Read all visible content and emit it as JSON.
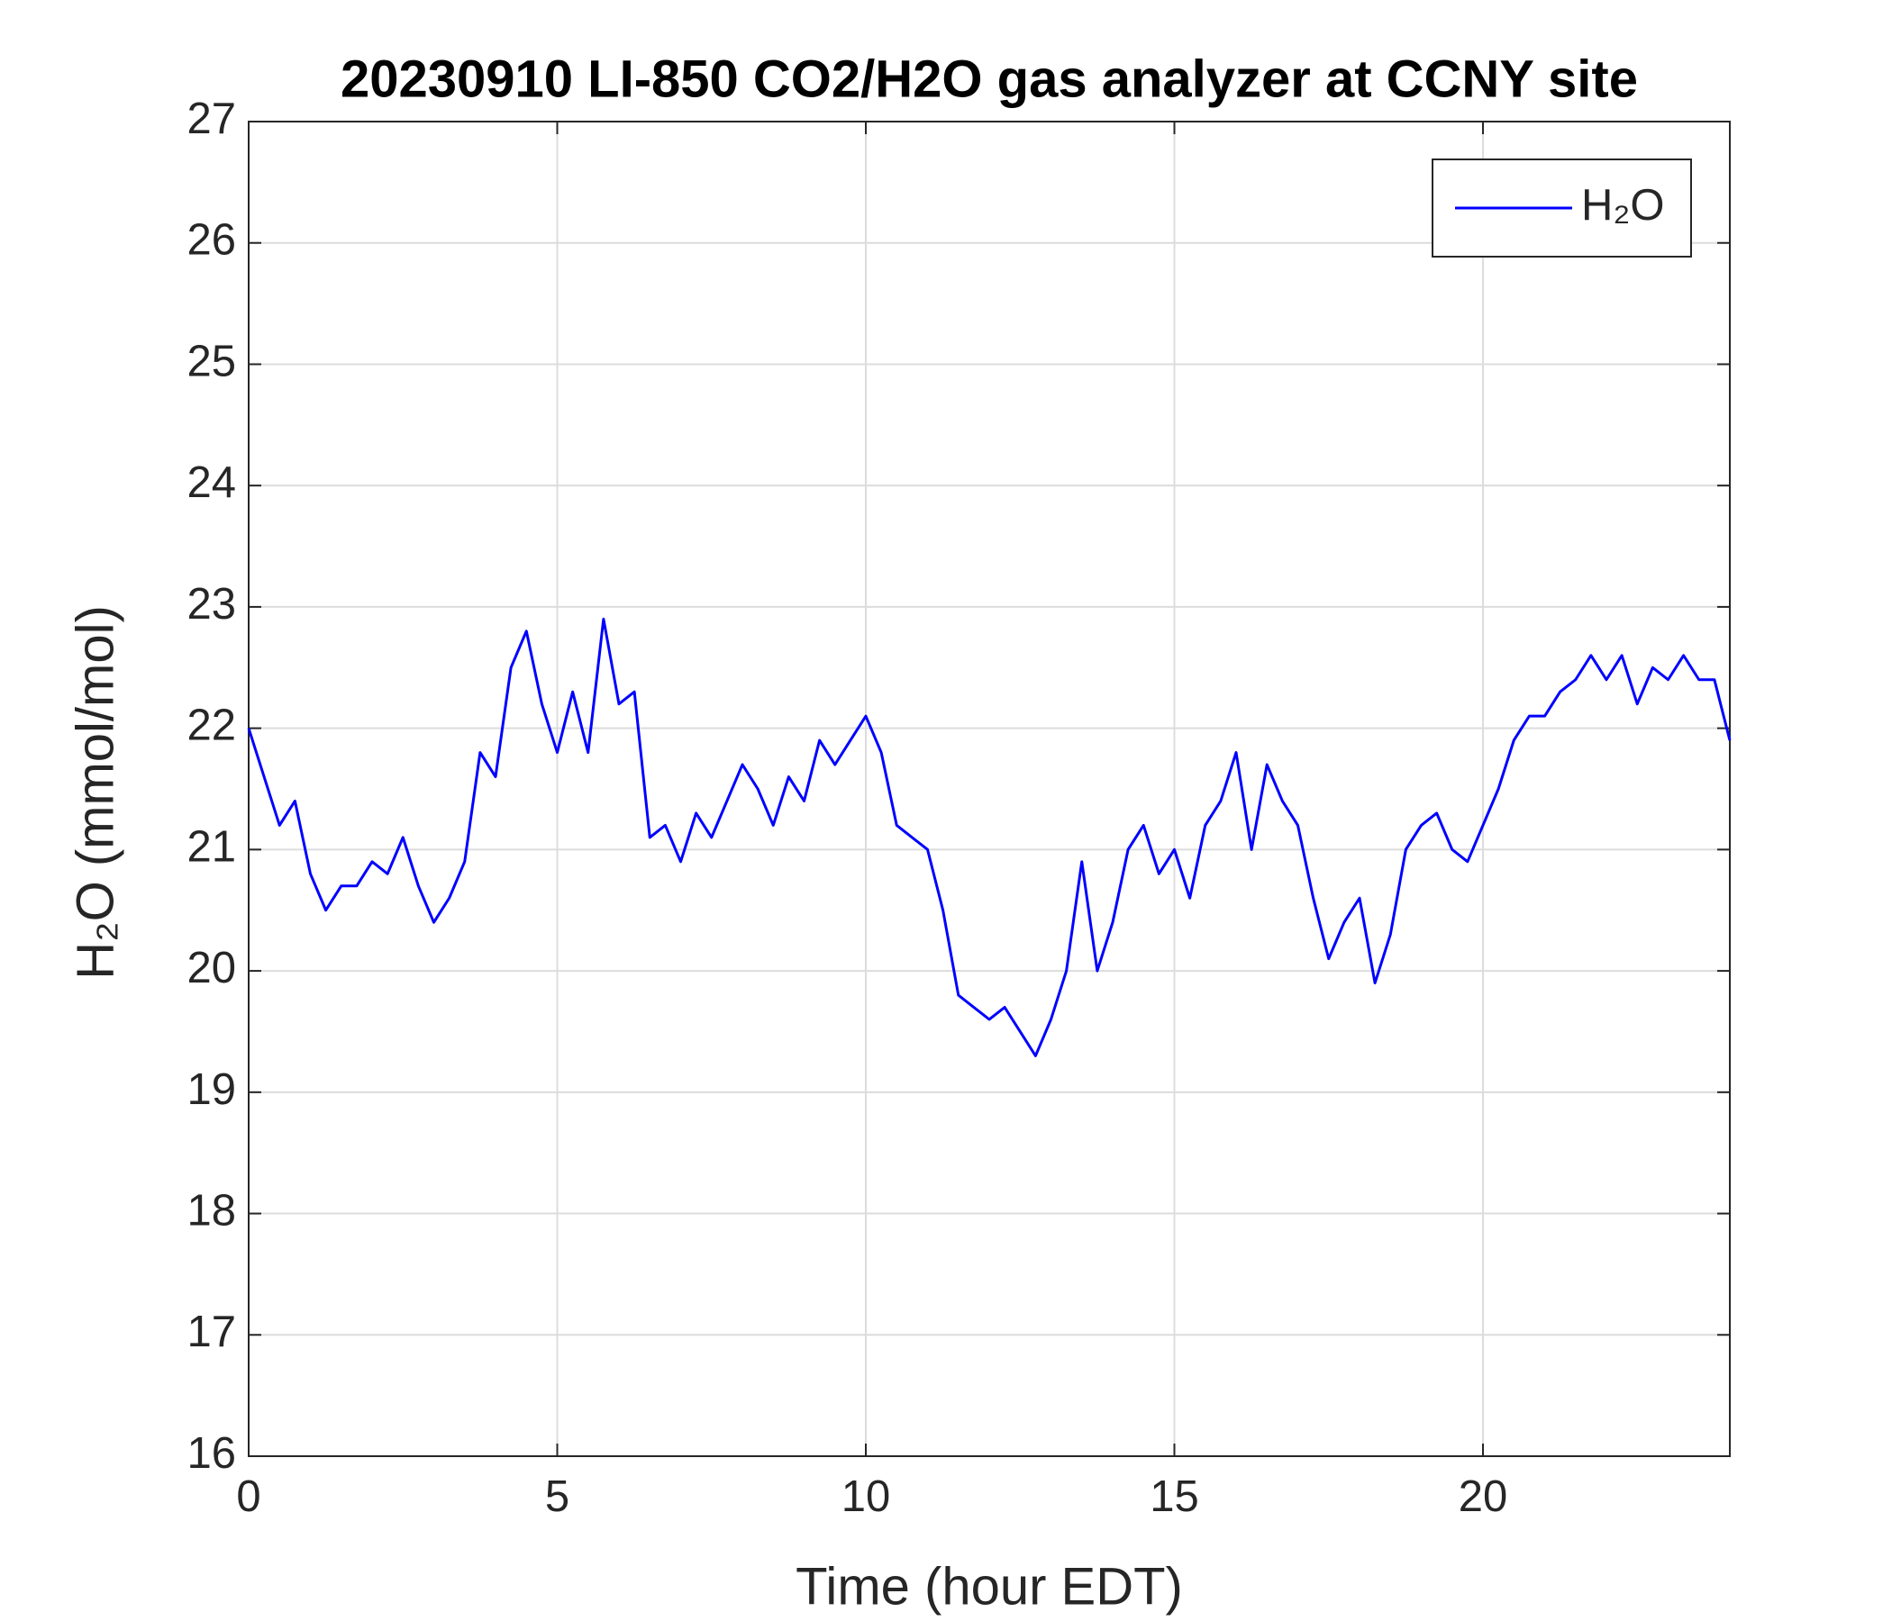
{
  "chart_data": {
    "type": "line",
    "title": "20230910 LI-850 CO2/H2O gas analyzer at CCNY site",
    "xlabel": "Time (hour EDT)",
    "ylabel": "H₂O (mmol/mol)",
    "x": [
      0,
      0.25,
      0.5,
      0.75,
      1,
      1.25,
      1.5,
      1.75,
      2,
      2.25,
      2.5,
      2.75,
      3,
      3.25,
      3.5,
      3.75,
      4,
      4.25,
      4.5,
      4.75,
      5,
      5.25,
      5.5,
      5.75,
      6,
      6.25,
      6.5,
      6.75,
      7,
      7.25,
      7.5,
      7.75,
      8,
      8.25,
      8.5,
      8.75,
      9,
      9.25,
      9.5,
      9.75,
      10,
      10.25,
      10.5,
      10.75,
      11,
      11.25,
      11.5,
      11.75,
      12,
      12.25,
      12.5,
      12.75,
      13,
      13.25,
      13.5,
      13.75,
      14,
      14.25,
      14.5,
      14.75,
      15,
      15.25,
      15.5,
      15.75,
      16,
      16.25,
      16.5,
      16.75,
      17,
      17.25,
      17.5,
      17.75,
      18,
      18.25,
      18.5,
      18.75,
      19,
      19.25,
      19.5,
      19.75,
      20,
      20.25,
      20.5,
      20.75,
      21,
      21.25,
      21.5,
      21.75,
      22,
      22.25,
      22.5,
      22.75,
      23,
      23.25,
      23.5,
      23.75,
      24
    ],
    "series": [
      {
        "name": "H₂O",
        "color": "#0000ff",
        "values": [
          22.0,
          21.6,
          21.2,
          21.4,
          20.8,
          20.5,
          20.7,
          20.7,
          20.9,
          20.8,
          21.1,
          20.7,
          20.4,
          20.6,
          20.9,
          21.8,
          21.6,
          22.5,
          22.8,
          22.2,
          21.8,
          22.3,
          21.8,
          22.9,
          22.2,
          22.3,
          21.1,
          21.2,
          20.9,
          21.3,
          21.1,
          21.4,
          21.7,
          21.5,
          21.2,
          21.6,
          21.4,
          21.9,
          21.7,
          21.9,
          22.1,
          21.8,
          21.2,
          21.1,
          21.0,
          20.5,
          19.8,
          19.7,
          19.6,
          19.7,
          19.5,
          19.3,
          19.6,
          20.0,
          20.9,
          20.0,
          20.4,
          21.0,
          21.2,
          20.8,
          21.0,
          20.6,
          21.2,
          21.4,
          21.8,
          21.0,
          21.7,
          21.4,
          21.2,
          20.6,
          20.1,
          20.4,
          20.6,
          19.9,
          20.3,
          21.0,
          21.2,
          21.3,
          21.0,
          20.9,
          21.2,
          21.5,
          21.9,
          22.1,
          22.1,
          22.3,
          22.4,
          22.6,
          22.4,
          22.6,
          22.2,
          22.5,
          22.4,
          22.6,
          22.4,
          22.4,
          21.9
        ]
      }
    ],
    "xlim": [
      0,
      24
    ],
    "xticks": [
      0,
      5,
      10,
      15,
      20
    ],
    "ylim": [
      16,
      27
    ],
    "yticks": [
      16,
      17,
      18,
      19,
      20,
      21,
      22,
      23,
      24,
      25,
      26,
      27
    ],
    "grid": true,
    "legend": "northeast"
  }
}
